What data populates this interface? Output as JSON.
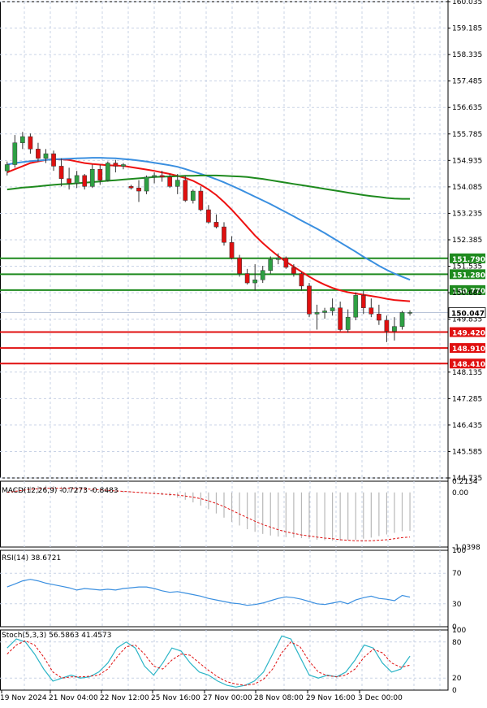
{
  "colors": {
    "bull": "#2ea043",
    "bear": "#e01010",
    "ma_red": "#ee1111",
    "ma_blue": "#3a8fe0",
    "ma_green": "#1e8a1e",
    "level_green": "#1e8a1e",
    "level_red": "#e01010",
    "grid": "#c9d3e6",
    "axis_text": "#000000",
    "price_tag_bg": "#ffffff",
    "macd_hist": "#b8b8b8",
    "macd_signal": "#e01010",
    "rsi_line": "#3a8fe0",
    "stoch_main": "#2cb5c7",
    "stoch_signal": "#e01010"
  },
  "chart_data": [
    {
      "type": "candlestick",
      "panel": "price",
      "y_ticks": [
        "160.035",
        "159.185",
        "158.335",
        "157.485",
        "156.635",
        "155.785",
        "154.935",
        "154.085",
        "153.235",
        "152.385",
        "151.535",
        "150.685",
        "149.835",
        "148.135",
        "147.285",
        "146.435",
        "145.585",
        "144.735"
      ],
      "ylim": [
        144.735,
        160.035
      ],
      "current_price": "150.047",
      "horizontal_levels": [
        {
          "label": "151.790",
          "value": 151.79,
          "kind": "resistance"
        },
        {
          "label": "151.280",
          "value": 151.28,
          "kind": "resistance"
        },
        {
          "label": "150.770",
          "value": 150.77,
          "kind": "resistance"
        },
        {
          "label": "149.420",
          "value": 149.42,
          "kind": "support"
        },
        {
          "label": "148.910",
          "value": 148.91,
          "kind": "support"
        },
        {
          "label": "148.410",
          "value": 148.41,
          "kind": "support"
        }
      ],
      "x_tick_labels": [
        "19 Nov 2024",
        "21 Nov 04:00",
        "22 Nov 12:00",
        "25 Nov 16:00",
        "27 Nov 00:00",
        "28 Nov 08:00",
        "29 Nov 16:00",
        "3 Dec 00:00"
      ],
      "candles": [
        {
          "o": 154.6,
          "h": 154.9,
          "l": 154.45,
          "c": 154.8
        },
        {
          "o": 154.8,
          "h": 155.75,
          "l": 154.7,
          "c": 155.5
        },
        {
          "o": 155.5,
          "h": 155.85,
          "l": 155.3,
          "c": 155.7
        },
        {
          "o": 155.7,
          "h": 155.8,
          "l": 155.15,
          "c": 155.3
        },
        {
          "o": 155.3,
          "h": 155.5,
          "l": 154.9,
          "c": 155.0
        },
        {
          "o": 155.0,
          "h": 155.3,
          "l": 154.85,
          "c": 155.15
        },
        {
          "o": 155.15,
          "h": 155.25,
          "l": 154.6,
          "c": 154.75
        },
        {
          "o": 154.75,
          "h": 155.0,
          "l": 154.1,
          "c": 154.35
        },
        {
          "o": 154.35,
          "h": 154.7,
          "l": 154.0,
          "c": 154.2
        },
        {
          "o": 154.2,
          "h": 154.6,
          "l": 154.05,
          "c": 154.45
        },
        {
          "o": 154.45,
          "h": 154.5,
          "l": 154.0,
          "c": 154.1
        },
        {
          "o": 154.1,
          "h": 154.8,
          "l": 154.05,
          "c": 154.65
        },
        {
          "o": 154.65,
          "h": 154.8,
          "l": 154.15,
          "c": 154.3
        },
        {
          "o": 154.3,
          "h": 154.9,
          "l": 154.25,
          "c": 154.85
        },
        {
          "o": 154.85,
          "h": 154.95,
          "l": 154.55,
          "c": 154.75
        },
        {
          "o": 154.75,
          "h": 154.85,
          "l": 154.65,
          "c": 154.8
        },
        {
          "o": 154.1,
          "h": 154.15,
          "l": 154.0,
          "c": 154.05
        },
        {
          "o": 154.05,
          "h": 154.3,
          "l": 153.6,
          "c": 153.95
        },
        {
          "o": 153.95,
          "h": 154.45,
          "l": 153.85,
          "c": 154.4
        },
        {
          "o": 154.4,
          "h": 154.55,
          "l": 154.2,
          "c": 154.45
        },
        {
          "o": 154.45,
          "h": 154.6,
          "l": 154.25,
          "c": 154.4
        },
        {
          "o": 154.4,
          "h": 154.5,
          "l": 154.05,
          "c": 154.1
        },
        {
          "o": 154.1,
          "h": 154.5,
          "l": 153.85,
          "c": 154.3
        },
        {
          "o": 154.3,
          "h": 154.45,
          "l": 153.6,
          "c": 153.65
        },
        {
          "o": 153.65,
          "h": 154.0,
          "l": 153.55,
          "c": 153.95
        },
        {
          "o": 153.95,
          "h": 154.1,
          "l": 153.3,
          "c": 153.35
        },
        {
          "o": 153.35,
          "h": 153.5,
          "l": 152.9,
          "c": 152.95
        },
        {
          "o": 152.95,
          "h": 153.2,
          "l": 152.75,
          "c": 152.8
        },
        {
          "o": 152.8,
          "h": 152.95,
          "l": 152.2,
          "c": 152.3
        },
        {
          "o": 152.3,
          "h": 152.5,
          "l": 151.75,
          "c": 151.8
        },
        {
          "o": 151.8,
          "h": 151.9,
          "l": 151.2,
          "c": 151.3
        },
        {
          "o": 151.3,
          "h": 151.45,
          "l": 150.95,
          "c": 151.0
        },
        {
          "o": 151.0,
          "h": 151.6,
          "l": 150.75,
          "c": 151.1
        },
        {
          "o": 151.1,
          "h": 151.55,
          "l": 151.0,
          "c": 151.4
        },
        {
          "o": 151.4,
          "h": 151.85,
          "l": 151.3,
          "c": 151.75
        },
        {
          "o": 151.75,
          "h": 151.95,
          "l": 151.6,
          "c": 151.8
        },
        {
          "o": 151.8,
          "h": 151.85,
          "l": 151.45,
          "c": 151.5
        },
        {
          "o": 151.5,
          "h": 151.6,
          "l": 151.2,
          "c": 151.3
        },
        {
          "o": 151.3,
          "h": 151.35,
          "l": 150.75,
          "c": 150.9
        },
        {
          "o": 150.9,
          "h": 151.0,
          "l": 149.9,
          "c": 150.0
        },
        {
          "o": 150.0,
          "h": 150.3,
          "l": 149.5,
          "c": 150.05
        },
        {
          "o": 150.05,
          "h": 150.2,
          "l": 149.85,
          "c": 150.1
        },
        {
          "o": 150.1,
          "h": 150.5,
          "l": 149.95,
          "c": 150.2
        },
        {
          "o": 150.2,
          "h": 150.4,
          "l": 149.45,
          "c": 149.5
        },
        {
          "o": 149.5,
          "h": 150.15,
          "l": 149.4,
          "c": 149.9
        },
        {
          "o": 149.9,
          "h": 150.7,
          "l": 149.8,
          "c": 150.6
        },
        {
          "o": 150.6,
          "h": 150.75,
          "l": 150.0,
          "c": 150.2
        },
        {
          "o": 150.2,
          "h": 150.5,
          "l": 149.9,
          "c": 150.0
        },
        {
          "o": 150.0,
          "h": 150.3,
          "l": 149.65,
          "c": 149.8
        },
        {
          "o": 149.8,
          "h": 149.95,
          "l": 149.1,
          "c": 149.45
        },
        {
          "o": 149.45,
          "h": 149.9,
          "l": 149.15,
          "c": 149.6
        },
        {
          "o": 149.6,
          "h": 150.1,
          "l": 149.5,
          "c": 150.05
        },
        {
          "o": 150.05,
          "h": 150.12,
          "l": 149.95,
          "c": 150.05
        }
      ],
      "moving_averages": [
        {
          "color_key": "ma_red",
          "values": [
            154.55,
            154.65,
            154.75,
            154.85,
            154.9,
            154.95,
            154.97,
            154.97,
            154.95,
            154.9,
            154.85,
            154.82,
            154.8,
            154.78,
            154.77,
            154.76,
            154.72,
            154.68,
            154.64,
            154.6,
            154.55,
            154.5,
            154.44,
            154.37,
            154.28,
            154.15,
            154.0,
            153.82,
            153.6,
            153.35,
            153.08,
            152.8,
            152.52,
            152.28,
            152.06,
            151.86,
            151.68,
            151.52,
            151.36,
            151.2,
            151.06,
            150.94,
            150.84,
            150.76,
            150.7,
            150.66,
            150.62,
            150.58,
            150.54,
            150.49,
            150.45,
            150.43,
            150.41
          ]
        },
        {
          "color_key": "ma_blue",
          "values": [
            154.8,
            154.85,
            154.88,
            154.91,
            154.93,
            154.95,
            154.97,
            154.98,
            154.99,
            155.0,
            155.01,
            155.02,
            155.02,
            155.01,
            155.0,
            154.98,
            154.96,
            154.93,
            154.9,
            154.86,
            154.82,
            154.78,
            154.73,
            154.66,
            154.58,
            154.5,
            154.42,
            154.33,
            154.23,
            154.12,
            154.01,
            153.89,
            153.77,
            153.65,
            153.53,
            153.4,
            153.27,
            153.14,
            153.0,
            152.87,
            152.74,
            152.6,
            152.45,
            152.3,
            152.15,
            152.0,
            151.84,
            151.7,
            151.55,
            151.42,
            151.3,
            151.2,
            151.1
          ]
        },
        {
          "color_key": "ma_green",
          "values": [
            154.0,
            154.03,
            154.06,
            154.08,
            154.1,
            154.13,
            154.15,
            154.17,
            154.18,
            154.2,
            154.22,
            154.24,
            154.26,
            154.28,
            154.3,
            154.32,
            154.34,
            154.36,
            154.38,
            154.4,
            154.41,
            154.42,
            154.43,
            154.44,
            154.44,
            154.45,
            154.45,
            154.45,
            154.44,
            154.43,
            154.42,
            154.4,
            154.37,
            154.34,
            154.3,
            154.26,
            154.22,
            154.18,
            154.14,
            154.1,
            154.06,
            154.02,
            153.98,
            153.94,
            153.9,
            153.86,
            153.82,
            153.79,
            153.76,
            153.73,
            153.71,
            153.7,
            153.7
          ]
        }
      ]
    },
    {
      "type": "bar",
      "panel": "macd",
      "label": "MACD(12,26,9) -0.7273 -0.8483",
      "y_ticks": [
        "0.2134",
        "0.00",
        "-1.0398"
      ],
      "ylim": [
        -1.0398,
        0.2134
      ],
      "histogram": [
        0.05,
        0.07,
        0.09,
        0.11,
        0.12,
        0.13,
        0.12,
        0.11,
        0.1,
        0.09,
        0.08,
        0.07,
        0.06,
        0.05,
        0.04,
        0.03,
        0.02,
        0.01,
        -0.01,
        -0.03,
        -0.05,
        -0.07,
        -0.1,
        -0.14,
        -0.19,
        -0.25,
        -0.32,
        -0.4,
        -0.48,
        -0.56,
        -0.63,
        -0.7,
        -0.75,
        -0.79,
        -0.82,
        -0.84,
        -0.85,
        -0.86,
        -0.87,
        -0.88,
        -0.9,
        -0.91,
        -0.92,
        -0.92,
        -0.91,
        -0.9,
        -0.88,
        -0.86,
        -0.83,
        -0.8,
        -0.77,
        -0.74,
        -0.73
      ],
      "signal": [
        0.0,
        0.02,
        0.04,
        0.06,
        0.07,
        0.08,
        0.08,
        0.08,
        0.08,
        0.07,
        0.07,
        0.06,
        0.05,
        0.04,
        0.03,
        0.02,
        0.01,
        0.0,
        -0.01,
        -0.02,
        -0.03,
        -0.04,
        -0.05,
        -0.07,
        -0.09,
        -0.12,
        -0.16,
        -0.21,
        -0.27,
        -0.34,
        -0.41,
        -0.48,
        -0.55,
        -0.61,
        -0.66,
        -0.71,
        -0.75,
        -0.78,
        -0.81,
        -0.83,
        -0.85,
        -0.87,
        -0.88,
        -0.9,
        -0.91,
        -0.92,
        -0.92,
        -0.92,
        -0.91,
        -0.9,
        -0.88,
        -0.86,
        -0.85
      ]
    },
    {
      "type": "line",
      "panel": "rsi",
      "label": "RSI(14) 38.6721",
      "y_ticks": [
        "100",
        "70",
        "30",
        "0"
      ],
      "ylim": [
        0,
        100
      ],
      "values": [
        52,
        56,
        60,
        62,
        60,
        57,
        55,
        53,
        51,
        48,
        50,
        49,
        48,
        49,
        48,
        50,
        51,
        52,
        52,
        50,
        47,
        45,
        46,
        44,
        42,
        40,
        37,
        35,
        33,
        31,
        30,
        28,
        29,
        31,
        34,
        37,
        39,
        38,
        36,
        33,
        30,
        29,
        31,
        33,
        30,
        35,
        38,
        40,
        37,
        36,
        34,
        41,
        38.6721
      ]
    },
    {
      "type": "line",
      "panel": "stoch",
      "label": "Stoch(5,3,3) 56.5863 41.4573",
      "y_ticks": [
        "100",
        "80",
        "20",
        "0"
      ],
      "ylim": [
        0,
        100
      ],
      "main": [
        70,
        85,
        80,
        60,
        35,
        15,
        20,
        25,
        20,
        22,
        30,
        45,
        70,
        80,
        70,
        40,
        25,
        45,
        70,
        65,
        45,
        30,
        25,
        15,
        8,
        5,
        8,
        15,
        30,
        60,
        90,
        85,
        55,
        25,
        20,
        25,
        22,
        30,
        50,
        75,
        70,
        45,
        30,
        35,
        56.5863
      ],
      "signal": [
        60,
        75,
        82,
        75,
        55,
        30,
        20,
        22,
        22,
        23,
        25,
        35,
        55,
        72,
        75,
        60,
        40,
        35,
        50,
        60,
        58,
        45,
        33,
        22,
        14,
        10,
        8,
        10,
        18,
        35,
        62,
        80,
        72,
        48,
        30,
        24,
        22,
        25,
        35,
        55,
        68,
        62,
        45,
        38,
        41.4573
      ]
    }
  ]
}
